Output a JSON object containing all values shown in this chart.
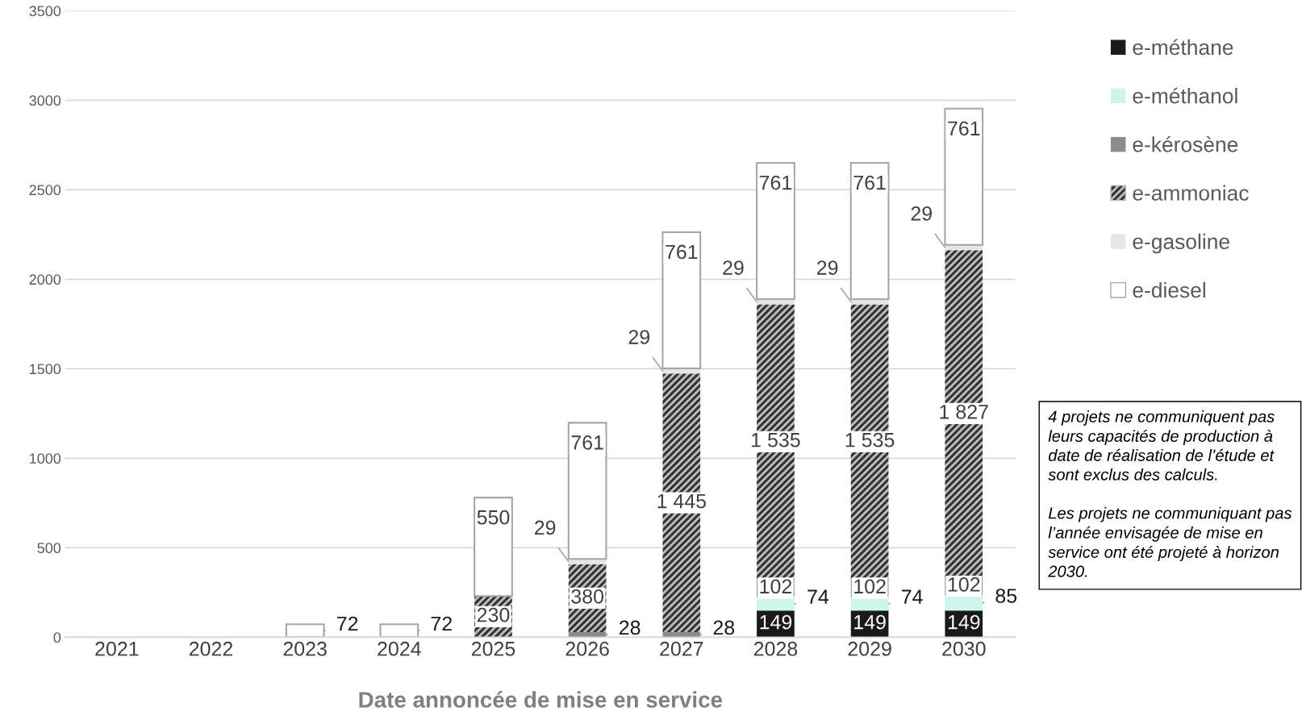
{
  "chart_data": {
    "type": "bar",
    "stacked": true,
    "xlabel": "Date annoncée de mise en service",
    "categories": [
      "2021",
      "2022",
      "2023",
      "2024",
      "2025",
      "2026",
      "2027",
      "2028",
      "2029",
      "2030"
    ],
    "ylim": [
      0,
      3500
    ],
    "yticks": [
      0,
      500,
      1000,
      1500,
      2000,
      2500,
      3000,
      3500
    ],
    "grid": "y",
    "legend": "right",
    "series": [
      {
        "name": "e-méthane",
        "color": "#1a1a1a",
        "values": [
          null,
          null,
          null,
          null,
          null,
          null,
          null,
          149,
          149,
          149
        ],
        "value_labels": [
          null,
          null,
          null,
          null,
          null,
          null,
          null,
          "149",
          "149",
          "149"
        ]
      },
      {
        "name": "e-méthanol",
        "color": "#ccf5ec",
        "values": [
          null,
          null,
          null,
          null,
          null,
          null,
          null,
          74,
          74,
          85
        ],
        "value_labels": [
          null,
          null,
          null,
          null,
          null,
          null,
          null,
          "74",
          "74",
          "85"
        ]
      },
      {
        "name": "e-kérosène",
        "color": "#8c8c8c",
        "values": [
          null,
          null,
          null,
          null,
          null,
          28,
          28,
          102,
          102,
          102
        ],
        "value_labels": [
          null,
          null,
          null,
          null,
          null,
          "28",
          "28",
          "102",
          "102",
          "102"
        ]
      },
      {
        "name": "e-ammoniac",
        "color": "#333333",
        "values": [
          null,
          null,
          null,
          null,
          230,
          380,
          1445,
          1535,
          1535,
          1827
        ],
        "value_labels": [
          null,
          null,
          null,
          null,
          "230",
          "380",
          "1 445",
          "1 535",
          "1 535",
          "1 827"
        ]
      },
      {
        "name": "e-gasoline",
        "color": "#e6e6e6",
        "values": [
          null,
          null,
          null,
          null,
          null,
          29,
          29,
          29,
          29,
          29
        ],
        "value_labels": [
          null,
          null,
          null,
          null,
          null,
          "29",
          "29",
          "29",
          "29",
          "29"
        ]
      },
      {
        "name": "e-diesel",
        "color": "#ffffff",
        "values": [
          null,
          null,
          72,
          72,
          550,
          761,
          761,
          761,
          761,
          761
        ],
        "value_labels": [
          null,
          null,
          "72",
          "72",
          "550",
          "761",
          "761",
          "761",
          "761",
          "761"
        ]
      }
    ],
    "annotations": [
      "4 projets ne communiquent pas leurs capacités de production à date de réalisation de l’étude et sont exclus des calculs.\n\nLes projets ne communiquant pas l’année envisagée de mise en service ont été projeté à horizon 2030."
    ]
  }
}
